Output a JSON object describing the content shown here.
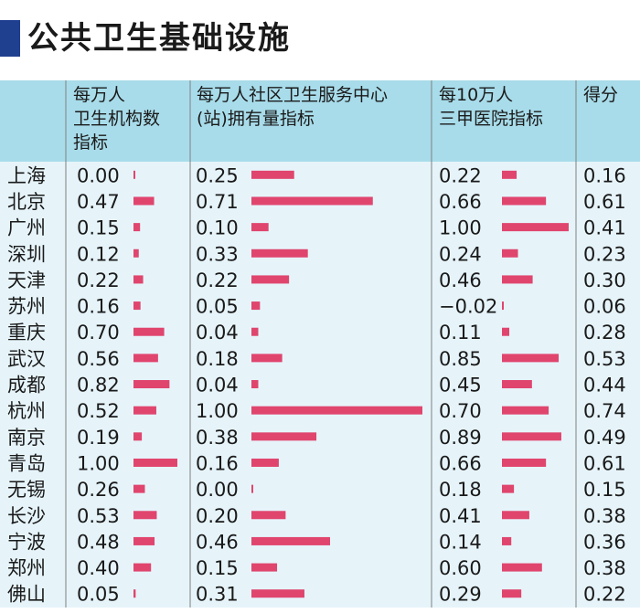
{
  "title": "公共卫生基础设施",
  "colors": {
    "header_bg": "#a8dcea",
    "body_bg": "#e6f4fa",
    "bar": "#e0456e",
    "title_accent": "#1f3f8f",
    "divider": "#7f7f7f"
  },
  "chart_data": {
    "type": "table",
    "columns": [
      {
        "lines": [
          "每万人",
          "卫生机构数",
          "指标"
        ]
      },
      {
        "lines": [
          "每万人社区卫生服务中心",
          "(站)拥有量指标"
        ]
      },
      {
        "lines": [
          "每10万人",
          "三甲医院指标"
        ]
      },
      {
        "lines": [
          "得分"
        ]
      }
    ],
    "rows": [
      {
        "city": "上海",
        "values": [
          "0.00",
          "0.25",
          "0.22",
          "0.16"
        ]
      },
      {
        "city": "北京",
        "values": [
          "0.47",
          "0.71",
          "0.66",
          "0.61"
        ]
      },
      {
        "city": "广州",
        "values": [
          "0.15",
          "0.10",
          "1.00",
          "0.41"
        ]
      },
      {
        "city": "深圳",
        "values": [
          "0.12",
          "0.33",
          "0.24",
          "0.23"
        ]
      },
      {
        "city": "天津",
        "values": [
          "0.22",
          "0.22",
          "0.46",
          "0.30"
        ]
      },
      {
        "city": "苏州",
        "values": [
          "0.16",
          "0.05",
          "−0.02",
          "0.06"
        ]
      },
      {
        "city": "重庆",
        "values": [
          "0.70",
          "0.04",
          "0.11",
          "0.28"
        ]
      },
      {
        "city": "武汉",
        "values": [
          "0.56",
          "0.18",
          "0.85",
          "0.53"
        ]
      },
      {
        "city": "成都",
        "values": [
          "0.82",
          "0.04",
          "0.45",
          "0.44"
        ]
      },
      {
        "city": "杭州",
        "values": [
          "0.52",
          "1.00",
          "0.70",
          "0.74"
        ]
      },
      {
        "city": "南京",
        "values": [
          "0.19",
          "0.38",
          "0.89",
          "0.49"
        ]
      },
      {
        "city": "青岛",
        "values": [
          "1.00",
          "0.16",
          "0.66",
          "0.61"
        ]
      },
      {
        "city": "无锡",
        "values": [
          "0.26",
          "0.00",
          "0.18",
          "0.15"
        ]
      },
      {
        "city": "长沙",
        "values": [
          "0.53",
          "0.20",
          "0.41",
          "0.38"
        ]
      },
      {
        "city": "宁波",
        "values": [
          "0.48",
          "0.46",
          "0.14",
          "0.36"
        ]
      },
      {
        "city": "郑州",
        "values": [
          "0.40",
          "0.15",
          "0.60",
          "0.38"
        ]
      },
      {
        "city": "佛山",
        "values": [
          "0.05",
          "0.31",
          "0.29",
          "0.22"
        ]
      }
    ]
  }
}
